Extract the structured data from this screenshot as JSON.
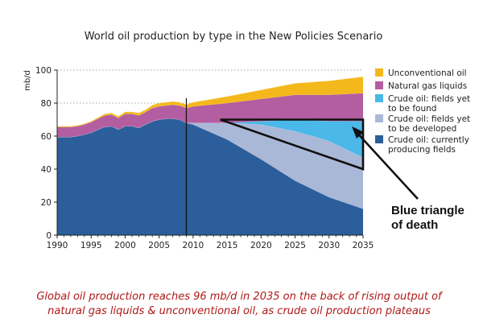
{
  "chart_data": {
    "type": "area",
    "title": "World oil production by type in the New Policies Scenario",
    "ylabel": "mb/d",
    "xlabel": "",
    "xlim": [
      1990,
      2035
    ],
    "ylim": [
      0,
      100
    ],
    "x_ticks": [
      "1990",
      "1995",
      "2000",
      "2005",
      "2010",
      "2015",
      "2020",
      "2025",
      "2030",
      "2035"
    ],
    "y_ticks": [
      "0",
      "20",
      "40",
      "60",
      "80",
      "100"
    ],
    "grid": "dotted horizontal",
    "legend_position": "right",
    "x": [
      1990,
      1991,
      1992,
      1993,
      1994,
      1995,
      1996,
      1997,
      1998,
      1999,
      2000,
      2001,
      2002,
      2003,
      2004,
      2005,
      2006,
      2007,
      2008,
      2009,
      2010,
      2015,
      2020,
      2025,
      2030,
      2035
    ],
    "series": [
      {
        "name": "Crude oil: currently producing fields",
        "color": "#2b5e9b",
        "values": [
          59.5,
          59.5,
          59.5,
          60,
          61,
          62,
          64,
          65.5,
          66,
          64,
          66,
          66,
          65,
          67,
          69,
          70,
          70.5,
          70.5,
          70,
          68,
          67,
          58,
          46,
          33,
          23,
          16
        ]
      },
      {
        "name": "Crude oil: fields yet to be developed",
        "color": "#aab8d8",
        "values": [
          0,
          0,
          0,
          0,
          0,
          0,
          0,
          0,
          0,
          0,
          0,
          0,
          0,
          0,
          0,
          0,
          0,
          0,
          0,
          0,
          1,
          10,
          21,
          30,
          34,
          31
        ]
      },
      {
        "name": "Crude oil: fields yet to be found",
        "color": "#4ab8e8",
        "values": [
          0,
          0,
          0,
          0,
          0,
          0,
          0,
          0,
          0,
          0,
          0,
          0,
          0,
          0,
          0,
          0,
          0,
          0,
          0,
          0,
          0,
          0,
          2,
          7,
          12,
          22
        ]
      },
      {
        "name": "Natural gas liquids",
        "color": "#b25ea0",
        "values": [
          6,
          6,
          6,
          6,
          6,
          6.5,
          6.5,
          7,
          7,
          7,
          7.5,
          7.5,
          7.5,
          7.5,
          8,
          8,
          8,
          8.5,
          8.5,
          9,
          10,
          12,
          13.5,
          15,
          16,
          17
        ]
      },
      {
        "name": "Unconventional oil",
        "color": "#f5b81c",
        "values": [
          0.5,
          0.5,
          0.5,
          0.5,
          0.5,
          0.5,
          0.8,
          1,
          1,
          1,
          1.2,
          1.2,
          1.5,
          1.5,
          1.8,
          2,
          2,
          2,
          2,
          2,
          2.5,
          4,
          5.5,
          7,
          8.5,
          10
        ]
      }
    ],
    "marker_year": 2009,
    "annotation": "Blue triangle\nof death",
    "triangle": {
      "x": [
        2014,
        2035,
        2035
      ],
      "y": [
        70,
        70,
        40
      ]
    }
  },
  "caption": {
    "line1": "Global oil production reaches 96 mb/d in 2035 on the back of rising output of",
    "line2": "natural gas liquids & unconventional oil, as crude oil production plateaus"
  },
  "legend_lines": [
    [
      "Unconventional oil"
    ],
    [
      "Natural gas liquids"
    ],
    [
      "Crude oil: fields yet",
      "to be found"
    ],
    [
      "Crude oil: fields yet",
      "to be developed"
    ],
    [
      "Crude oil: currently",
      "producing fields"
    ]
  ],
  "legend_order": [
    4,
    3,
    2,
    1,
    0
  ],
  "annotation_lines": [
    "Blue triangle",
    "of death"
  ]
}
